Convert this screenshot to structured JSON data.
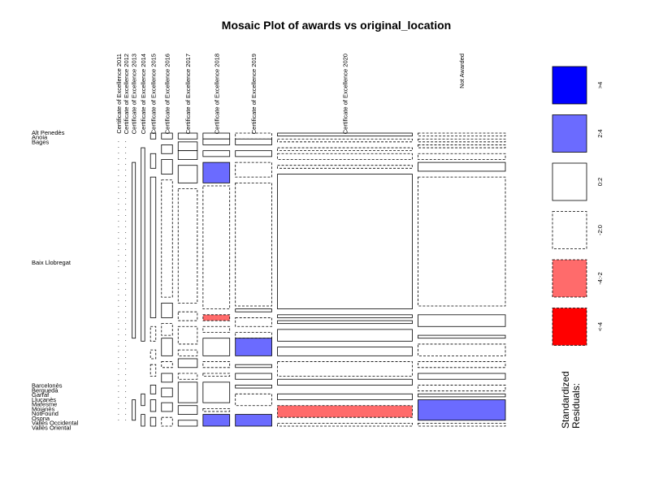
{
  "chart_data": {
    "type": "mosaic",
    "title": "Mosaic Plot of awards vs original_location",
    "columns": [
      {
        "label": "Certificate of Excellence 2011",
        "share": 0.0035
      },
      {
        "label": "Certificate of Excellence 2012",
        "share": 0.0035
      },
      {
        "label": "Certificate of Excellence 2013",
        "share": 0.0077
      },
      {
        "label": "Certificate of Excellence 2014",
        "share": 0.0085
      },
      {
        "label": "Certificate of Excellence 2015",
        "share": 0.0125
      },
      {
        "label": "Certificate of Excellence 2016",
        "share": 0.0257
      },
      {
        "label": "Certificate of Excellence 2017",
        "share": 0.0449
      },
      {
        "label": "Certificate of Excellence 2018",
        "share": 0.0625
      },
      {
        "label": "Certificate of Excellence 2019",
        "share": 0.0853
      },
      {
        "label": "Certificate of Excellence 2020",
        "share": 0.3158
      },
      {
        "label": "Not Awarded",
        "share": 0.2046
      }
    ],
    "rows": [
      "Alt Penedès",
      "Anoia",
      "Bages",
      "Baix Llobregat",
      "Barcelonès",
      "Berguedà",
      "Garraf",
      "Lluçanès",
      "Maresme",
      "Moianès",
      "NotFound",
      "Osona",
      "Vallès Occidental",
      "Vallès Oriental"
    ],
    "row_label_anchors": [
      {
        "label": "Alt Penedès",
        "at": 0.0
      },
      {
        "label": "Anoia",
        "at": 0.0159
      },
      {
        "label": "Bages",
        "at": 0.0317
      },
      {
        "label": "Baix Llobregat",
        "at": 0.4429
      },
      {
        "label": "Barcelonès",
        "at": 0.8635
      },
      {
        "label": "Berguedà",
        "at": 0.8794
      },
      {
        "label": "Garraf",
        "at": 0.8952
      },
      {
        "label": "Lluçanès",
        "at": 0.9111
      },
      {
        "label": "Maresme",
        "at": 0.927
      },
      {
        "label": "Moianès",
        "at": 0.9429
      },
      {
        "label": "NotFound",
        "at": 0.9587
      },
      {
        "label": "Osona",
        "at": 0.9746
      },
      {
        "label": "Vallès Occidental",
        "at": 0.9905
      },
      {
        "label": "Vallès Oriental",
        "at": 1.0063
      }
    ],
    "column_tiles": [
      [],
      [],
      [
        {
          "from": 0.1,
          "to": 0.7,
          "style": "solid",
          "fill": "none"
        },
        {
          "from": 0.91,
          "to": 0.98,
          "style": "solid",
          "fill": "none"
        }
      ],
      [
        {
          "from": 0.05,
          "to": 0.71,
          "style": "solid",
          "fill": "none"
        },
        {
          "from": 0.89,
          "to": 0.93,
          "style": "solid",
          "fill": "none"
        },
        {
          "from": 0.96,
          "to": 1.0,
          "style": "solid",
          "fill": "none"
        }
      ],
      [
        {
          "from": 0.0,
          "to": 0.02,
          "style": "solid",
          "fill": "none"
        },
        {
          "from": 0.07,
          "to": 0.12,
          "style": "solid",
          "fill": "none"
        },
        {
          "from": 0.15,
          "to": 0.63,
          "style": "solid",
          "fill": "none"
        },
        {
          "from": 0.66,
          "to": 0.71,
          "style": "dashed",
          "fill": "none"
        },
        {
          "from": 0.74,
          "to": 0.77,
          "style": "dashed",
          "fill": "none"
        },
        {
          "from": 0.79,
          "to": 0.83,
          "style": "dashed",
          "fill": "none"
        },
        {
          "from": 0.86,
          "to": 0.89,
          "style": "solid",
          "fill": "none"
        },
        {
          "from": 0.91,
          "to": 0.95,
          "style": "solid",
          "fill": "none"
        },
        {
          "from": 0.97,
          "to": 1.0,
          "style": "solid",
          "fill": "none"
        }
      ],
      [
        {
          "from": 0.0,
          "to": 0.02,
          "style": "solid",
          "fill": "none"
        },
        {
          "from": 0.04,
          "to": 0.07,
          "style": "solid",
          "fill": "none"
        },
        {
          "from": 0.09,
          "to": 0.14,
          "style": "solid",
          "fill": "none"
        },
        {
          "from": 0.16,
          "to": 0.56,
          "style": "dashed",
          "fill": "none"
        },
        {
          "from": 0.58,
          "to": 0.63,
          "style": "solid",
          "fill": "none"
        },
        {
          "from": 0.65,
          "to": 0.69,
          "style": "dashed",
          "fill": "none"
        },
        {
          "from": 0.7,
          "to": 0.76,
          "style": "solid",
          "fill": "none"
        },
        {
          "from": 0.78,
          "to": 0.8,
          "style": "dashed",
          "fill": "none"
        },
        {
          "from": 0.82,
          "to": 0.85,
          "style": "solid",
          "fill": "none"
        },
        {
          "from": 0.87,
          "to": 0.9,
          "style": "solid",
          "fill": "none"
        },
        {
          "from": 0.92,
          "to": 0.95,
          "style": "solid",
          "fill": "none"
        },
        {
          "from": 0.97,
          "to": 1.0,
          "style": "dashed",
          "fill": "none"
        }
      ],
      [
        {
          "from": 0.0,
          "to": 0.02,
          "style": "solid",
          "fill": "none"
        },
        {
          "from": 0.03,
          "to": 0.06,
          "style": "solid",
          "fill": "none"
        },
        {
          "from": 0.06,
          "to": 0.09,
          "style": "solid",
          "fill": "none"
        },
        {
          "from": 0.11,
          "to": 0.17,
          "style": "solid",
          "fill": "none"
        },
        {
          "from": 0.19,
          "to": 0.58,
          "style": "dashed",
          "fill": "none"
        },
        {
          "from": 0.61,
          "to": 0.64,
          "style": "dashed",
          "fill": "none"
        },
        {
          "from": 0.66,
          "to": 0.72,
          "style": "dashed",
          "fill": "none"
        },
        {
          "from": 0.74,
          "to": 0.76,
          "style": "dashed",
          "fill": "none"
        },
        {
          "from": 0.77,
          "to": 0.8,
          "style": "solid",
          "fill": "none"
        },
        {
          "from": 0.82,
          "to": 0.84,
          "style": "dashed",
          "fill": "none"
        },
        {
          "from": 0.85,
          "to": 0.92,
          "style": "solid",
          "fill": "none"
        },
        {
          "from": 0.93,
          "to": 0.96,
          "style": "solid",
          "fill": "none"
        },
        {
          "from": 0.98,
          "to": 1.0,
          "style": "solid",
          "fill": "none"
        }
      ],
      [
        {
          "from": 0.0,
          "to": 0.02,
          "style": "solid",
          "fill": "none"
        },
        {
          "from": 0.02,
          "to": 0.04,
          "style": "solid",
          "fill": "none"
        },
        {
          "from": 0.06,
          "to": 0.08,
          "style": "solid",
          "fill": "none"
        },
        {
          "from": 0.1,
          "to": 0.17,
          "style": "solid",
          "fill": "blue"
        },
        {
          "from": 0.18,
          "to": 0.6,
          "style": "dashed",
          "fill": "none"
        },
        {
          "from": 0.62,
          "to": 0.64,
          "style": "dashed",
          "fill": "red"
        },
        {
          "from": 0.66,
          "to": 0.68,
          "style": "dashed",
          "fill": "none"
        },
        {
          "from": 0.7,
          "to": 0.76,
          "style": "solid",
          "fill": "none"
        },
        {
          "from": 0.78,
          "to": 0.8,
          "style": "dashed",
          "fill": "none"
        },
        {
          "from": 0.82,
          "to": 0.83,
          "style": "dashed",
          "fill": "none"
        },
        {
          "from": 0.85,
          "to": 0.92,
          "style": "solid",
          "fill": "none"
        },
        {
          "from": 0.94,
          "to": 0.95,
          "style": "dashed",
          "fill": "none"
        },
        {
          "from": 0.96,
          "to": 1.0,
          "style": "solid",
          "fill": "blue"
        }
      ],
      [
        {
          "from": 0.0,
          "to": 0.02,
          "style": "dashed",
          "fill": "none"
        },
        {
          "from": 0.02,
          "to": 0.04,
          "style": "solid",
          "fill": "none"
        },
        {
          "from": 0.06,
          "to": 0.08,
          "style": "solid",
          "fill": "none"
        },
        {
          "from": 0.1,
          "to": 0.15,
          "style": "dashed",
          "fill": "none"
        },
        {
          "from": 0.17,
          "to": 0.59,
          "style": "dashed",
          "fill": "none"
        },
        {
          "from": 0.6,
          "to": 0.61,
          "style": "solid",
          "fill": "none"
        },
        {
          "from": 0.63,
          "to": 0.66,
          "style": "dashed",
          "fill": "none"
        },
        {
          "from": 0.68,
          "to": 0.7,
          "style": "dashed",
          "fill": "none"
        },
        {
          "from": 0.7,
          "to": 0.76,
          "style": "solid",
          "fill": "blue"
        },
        {
          "from": 0.79,
          "to": 0.8,
          "style": "solid",
          "fill": "none"
        },
        {
          "from": 0.82,
          "to": 0.84,
          "style": "solid",
          "fill": "none"
        },
        {
          "from": 0.86,
          "to": 0.87,
          "style": "solid",
          "fill": "none"
        },
        {
          "from": 0.89,
          "to": 0.93,
          "style": "dashed",
          "fill": "none"
        },
        {
          "from": 0.96,
          "to": 1.0,
          "style": "solid",
          "fill": "blue"
        }
      ],
      [
        {
          "from": 0.0,
          "to": 0.01,
          "style": "solid",
          "fill": "none"
        },
        {
          "from": 0.02,
          "to": 0.03,
          "style": "dashed",
          "fill": "none"
        },
        {
          "from": 0.05,
          "to": 0.06,
          "style": "dashed",
          "fill": "none"
        },
        {
          "from": 0.07,
          "to": 0.09,
          "style": "dashed",
          "fill": "none"
        },
        {
          "from": 0.11,
          "to": 0.12,
          "style": "dashed",
          "fill": "none"
        },
        {
          "from": 0.14,
          "to": 0.6,
          "style": "solid",
          "fill": "none"
        },
        {
          "from": 0.62,
          "to": 0.63,
          "style": "solid",
          "fill": "none"
        },
        {
          "from": 0.64,
          "to": 0.65,
          "style": "solid",
          "fill": "none"
        },
        {
          "from": 0.67,
          "to": 0.71,
          "style": "solid",
          "fill": "none"
        },
        {
          "from": 0.73,
          "to": 0.76,
          "style": "solid",
          "fill": "none"
        },
        {
          "from": 0.78,
          "to": 0.83,
          "style": "dashed",
          "fill": "none"
        },
        {
          "from": 0.84,
          "to": 0.86,
          "style": "solid",
          "fill": "none"
        },
        {
          "from": 0.89,
          "to": 0.91,
          "style": "solid",
          "fill": "none"
        },
        {
          "from": 0.93,
          "to": 0.97,
          "style": "dashed",
          "fill": "red"
        },
        {
          "from": 0.99,
          "to": 1.0,
          "style": "dashed",
          "fill": "none"
        }
      ],
      [
        {
          "from": 0.0,
          "to": 0.01,
          "style": "dashed",
          "fill": "none"
        },
        {
          "from": 0.02,
          "to": 0.03,
          "style": "dashed",
          "fill": "none"
        },
        {
          "from": 0.04,
          "to": 0.05,
          "style": "dashed",
          "fill": "none"
        },
        {
          "from": 0.07,
          "to": 0.09,
          "style": "dashed",
          "fill": "none"
        },
        {
          "from": 0.1,
          "to": 0.13,
          "style": "solid",
          "fill": "none"
        },
        {
          "from": 0.15,
          "to": 0.59,
          "style": "dashed",
          "fill": "none"
        },
        {
          "from": 0.62,
          "to": 0.66,
          "style": "solid",
          "fill": "none"
        },
        {
          "from": 0.69,
          "to": 0.7,
          "style": "solid",
          "fill": "none"
        },
        {
          "from": 0.72,
          "to": 0.76,
          "style": "dashed",
          "fill": "none"
        },
        {
          "from": 0.78,
          "to": 0.8,
          "style": "dashed",
          "fill": "none"
        },
        {
          "from": 0.82,
          "to": 0.84,
          "style": "solid",
          "fill": "none"
        },
        {
          "from": 0.86,
          "to": 0.88,
          "style": "dashed",
          "fill": "none"
        },
        {
          "from": 0.89,
          "to": 0.9,
          "style": "solid",
          "fill": "none"
        },
        {
          "from": 0.91,
          "to": 0.98,
          "style": "solid",
          "fill": "blue"
        },
        {
          "from": 0.99,
          "to": 1.0,
          "style": "dashed",
          "fill": "none"
        }
      ]
    ],
    "legend": {
      "title": "Standardized Residuals:",
      "position": "right",
      "entries": [
        {
          "label": ">4",
          "fill": "#0000ff",
          "style": "solid"
        },
        {
          "label": "2:4",
          "fill": "#6b6bff",
          "style": "solid"
        },
        {
          "label": "0:2",
          "fill": "#ffffff",
          "style": "solid"
        },
        {
          "label": "-2:0",
          "fill": "#ffffff",
          "style": "dashed"
        },
        {
          "label": "-4:-2",
          "fill": "#ff6b6b",
          "style": "dashed"
        },
        {
          "label": "<-4",
          "fill": "#ff0000",
          "style": "dashed"
        }
      ]
    },
    "colors": {
      "blue": "#6b6bff",
      "red": "#ff6b6b"
    }
  }
}
